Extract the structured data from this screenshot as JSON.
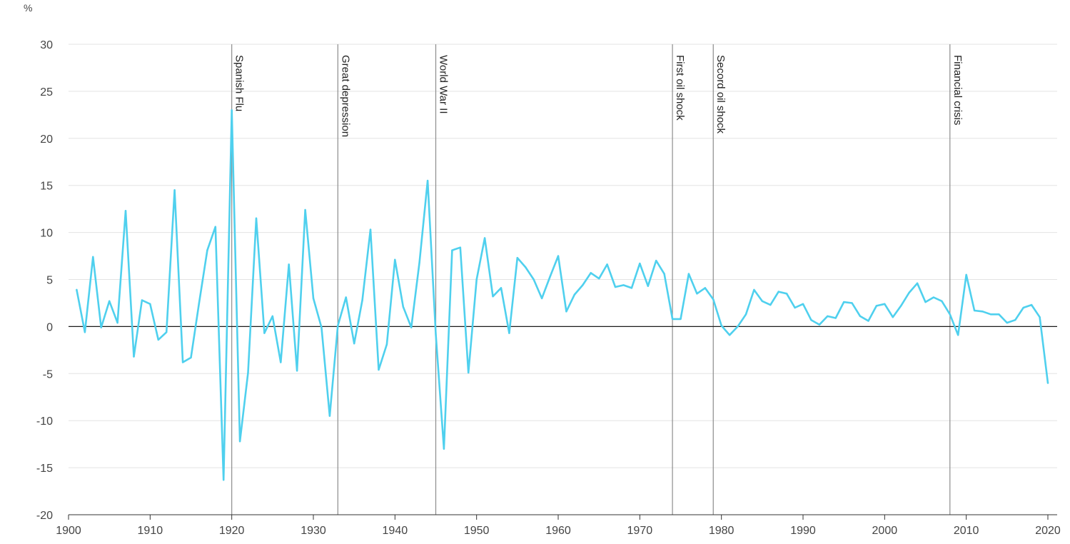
{
  "chart_data": {
    "type": "line",
    "title": "",
    "xlabel": "",
    "ylabel": "%",
    "xlim": [
      1900,
      2020
    ],
    "ylim": [
      -20,
      30
    ],
    "grid": true,
    "colors": {
      "line": "#4fd0ee",
      "grid": "#e3e3e3",
      "zero": "#1a1a1a",
      "event": "#8c8c8c",
      "axis": "#333333"
    },
    "x_ticks": [
      1900,
      1910,
      1920,
      1930,
      1940,
      1950,
      1960,
      1970,
      1980,
      1990,
      2000,
      2010,
      2020
    ],
    "x_tick_labels": [
      "1900",
      "1910",
      "1920",
      "1930",
      "1940",
      "1950",
      "1960",
      "1970",
      "1980",
      "1990",
      "2000",
      "2010",
      "2020"
    ],
    "y_ticks": [
      30,
      25,
      20,
      15,
      10,
      5,
      0,
      -5,
      -10,
      -15,
      -20
    ],
    "y_tick_labels": [
      "30",
      "25",
      "20",
      "15",
      "10",
      "5",
      "0",
      "-5",
      "-10",
      "-15",
      "-20"
    ],
    "events": [
      {
        "label": "Spanish Flu",
        "x": 1920.0
      },
      {
        "label": "Great depression",
        "x": 1933.0
      },
      {
        "label": "World War II",
        "x": 1945.0
      },
      {
        "label": "First oil shock",
        "x": 1974.0
      },
      {
        "label": "Secord oil shock",
        "x": 1979.0
      },
      {
        "label": "Financial crisis",
        "x": 2008.0
      }
    ],
    "series": [
      {
        "x": [
          1901,
          1902,
          1903,
          1904,
          1905,
          1906,
          1907,
          1908,
          1909,
          1910,
          1911,
          1912,
          1913,
          1914,
          1915,
          1916,
          1917,
          1918,
          1919,
          1920,
          1921,
          1922,
          1923,
          1924,
          1925,
          1926,
          1927,
          1928,
          1929,
          1930,
          1931,
          1932,
          1933,
          1934,
          1935,
          1936,
          1937,
          1938,
          1939,
          1940,
          1941,
          1942,
          1943,
          1944,
          1945,
          1946,
          1947,
          1948,
          1949,
          1950,
          1951,
          1952,
          1953,
          1954,
          1955,
          1956,
          1957,
          1958,
          1959,
          1960,
          1961,
          1962,
          1963,
          1964,
          1965,
          1966,
          1967,
          1968,
          1969,
          1970,
          1971,
          1972,
          1973,
          1974,
          1975,
          1976,
          1977,
          1978,
          1979,
          1980,
          1981,
          1982,
          1983,
          1984,
          1985,
          1986,
          1987,
          1988,
          1989,
          1990,
          1991,
          1992,
          1993,
          1994,
          1995,
          1996,
          1997,
          1998,
          1999,
          2000,
          2001,
          2002,
          2003,
          2004,
          2005,
          2006,
          2007,
          2008,
          2009,
          2010,
          2011,
          2012,
          2013,
          2014,
          2015,
          2016,
          2017,
          2018,
          2019,
          2020
        ],
        "values": [
          3.9,
          -0.6,
          7.4,
          -0.1,
          2.7,
          0.4,
          12.3,
          -3.2,
          2.8,
          2.4,
          -1.4,
          -0.6,
          14.5,
          -3.8,
          -3.3,
          2.5,
          8.1,
          10.6,
          -16.3,
          23.0,
          -12.2,
          -4.9,
          11.5,
          -0.7,
          1.1,
          -3.8,
          6.6,
          -4.7,
          12.4,
          3.0,
          -0.1,
          -9.5,
          0.1,
          3.1,
          -1.8,
          2.8,
          10.3,
          -4.6,
          -1.9,
          7.1,
          2.1,
          -0.1,
          6.8,
          15.5,
          -0.8,
          -13.0,
          8.1,
          8.4,
          -4.9,
          5.0,
          9.4,
          3.2,
          4.1,
          -0.7,
          7.3,
          6.3,
          5.0,
          3.0,
          5.3,
          7.5,
          1.6,
          3.4,
          4.4,
          5.7,
          5.1,
          6.6,
          4.2,
          4.4,
          4.1,
          6.7,
          4.3,
          7.0,
          5.6,
          0.8,
          0.8,
          5.6,
          3.5,
          4.1,
          2.9,
          0.1,
          -0.9,
          0.0,
          1.3,
          3.9,
          2.7,
          2.3,
          3.7,
          3.5,
          2.0,
          2.4,
          0.7,
          0.2,
          1.1,
          0.9,
          2.6,
          2.5,
          1.1,
          0.6,
          2.2,
          2.4,
          1.0,
          2.2,
          3.6,
          4.6,
          2.6,
          3.1,
          2.7,
          1.3,
          -0.9,
          5.5,
          1.7,
          1.6,
          1.3,
          1.3,
          0.4,
          0.7,
          2.0,
          2.3,
          1.0,
          -6.0
        ]
      }
    ]
  }
}
